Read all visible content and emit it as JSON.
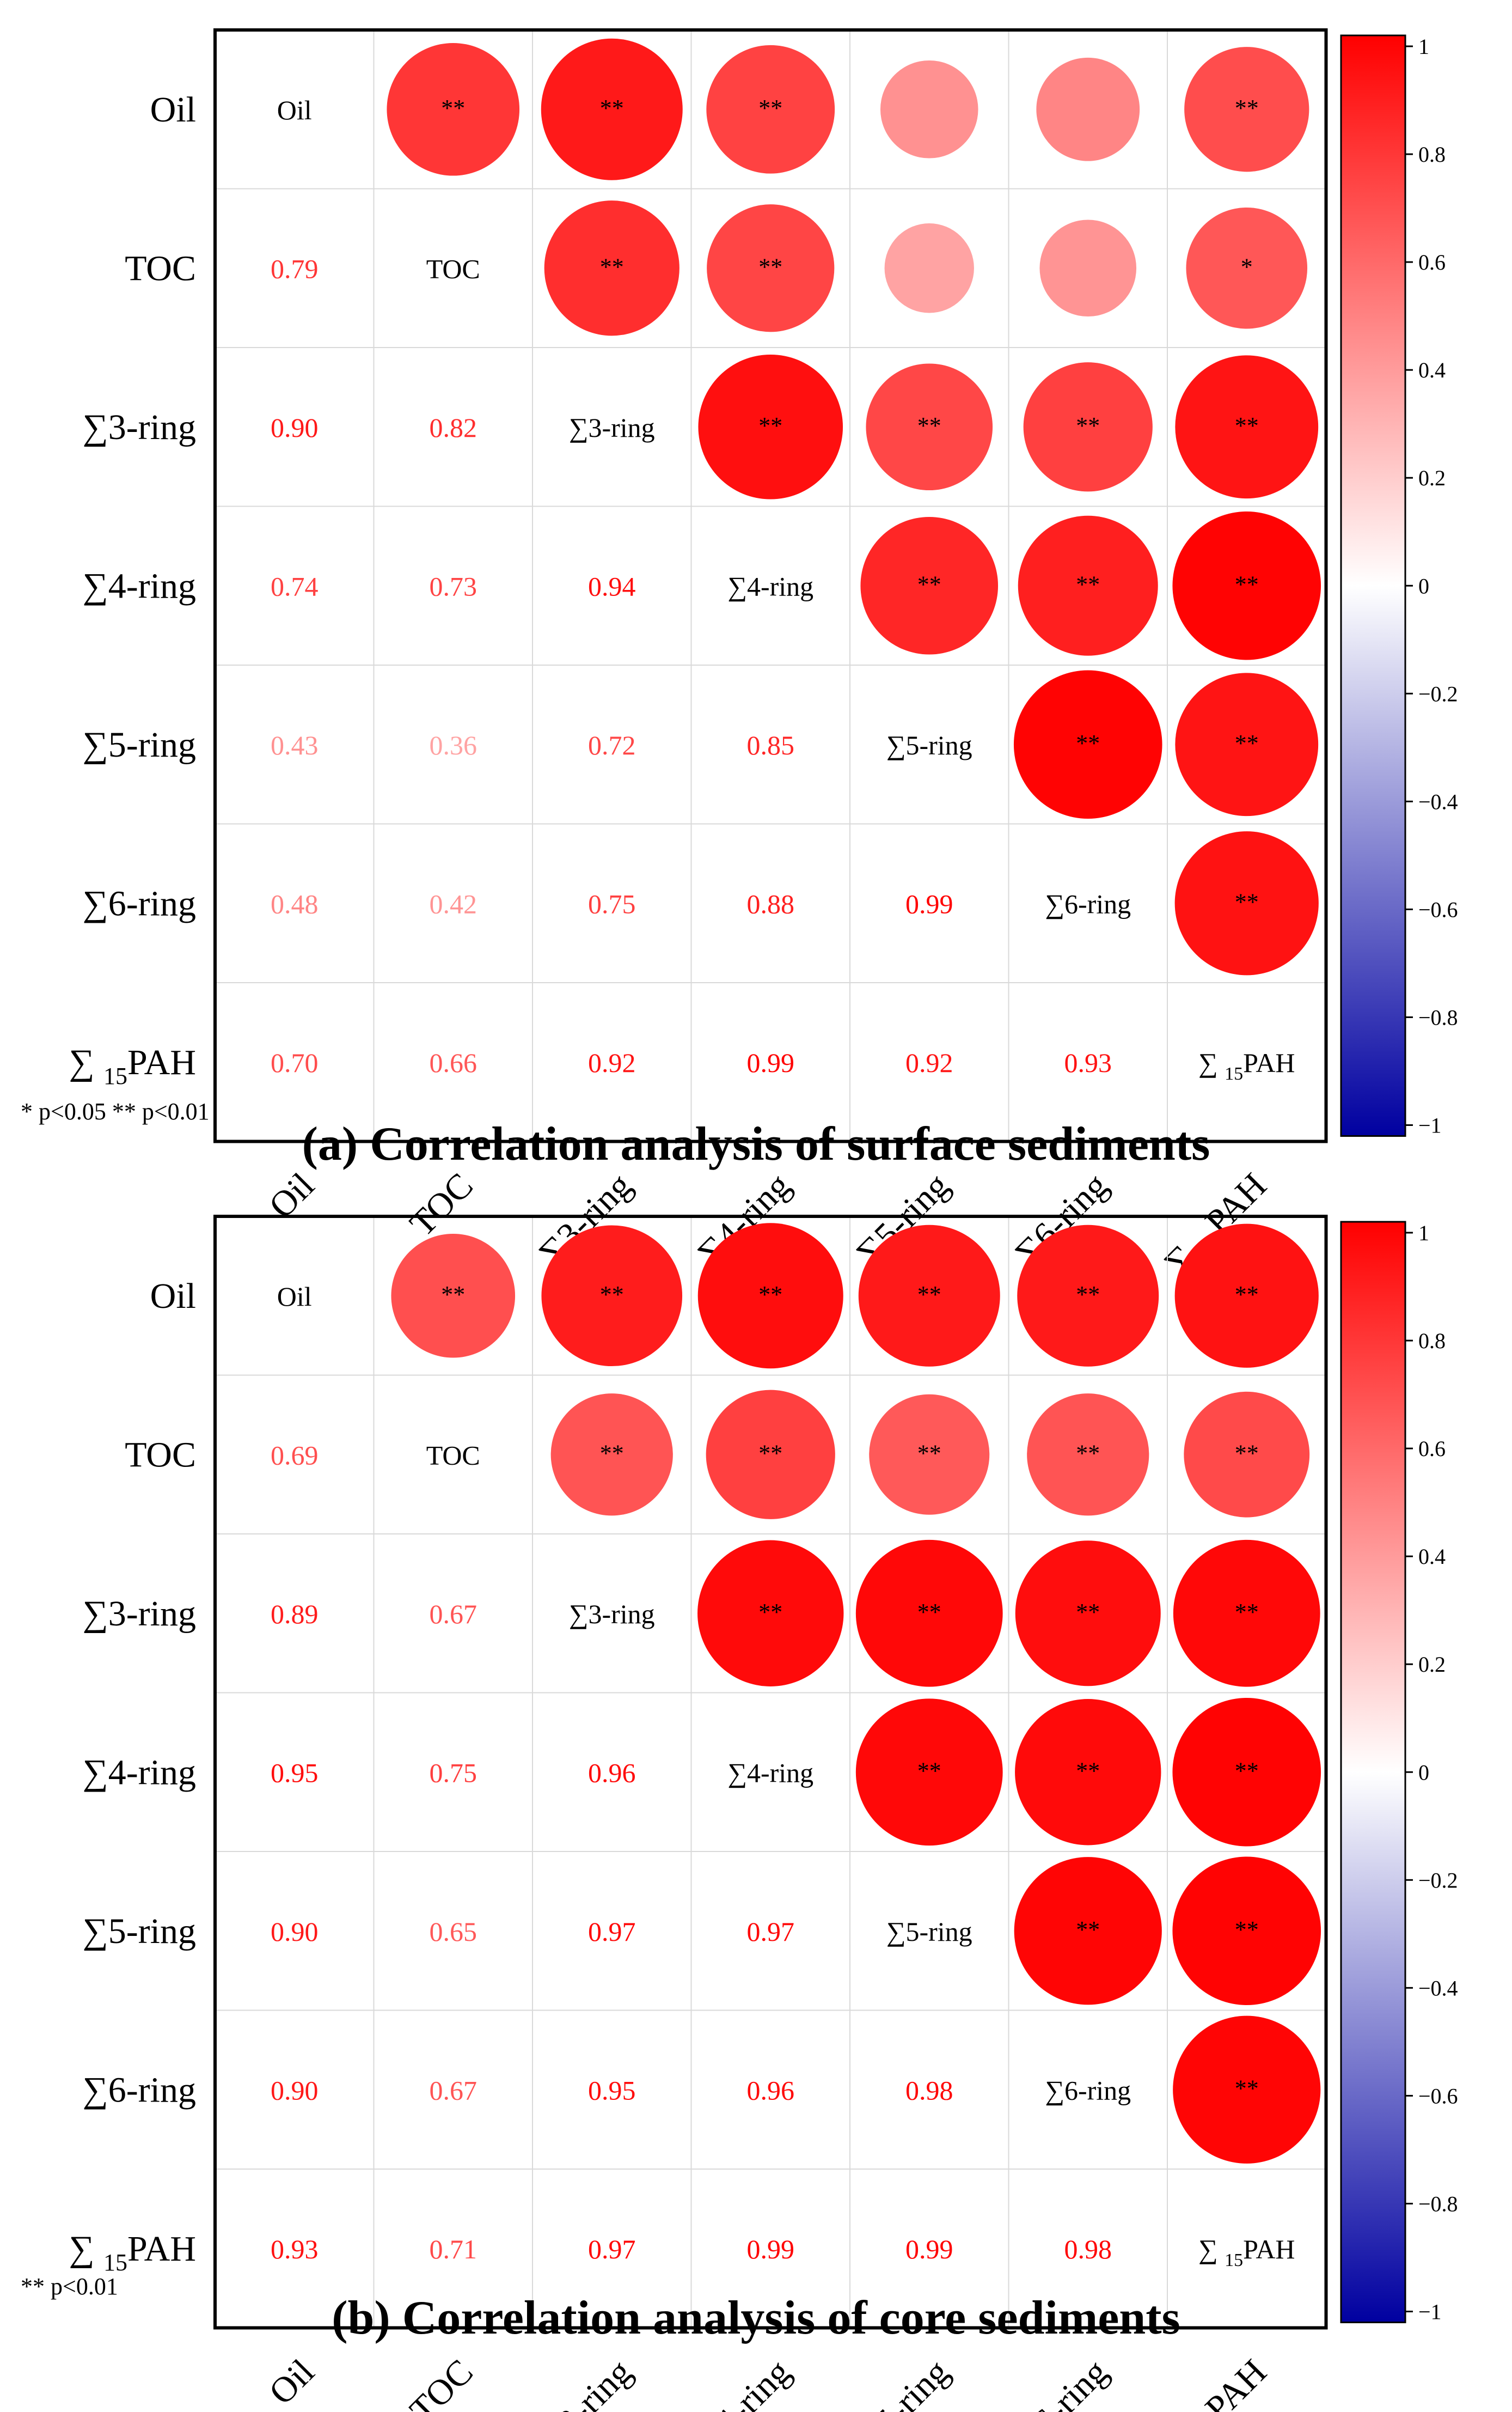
{
  "chart_data": [
    {
      "type": "heatmap",
      "subtype": "correlation-matrix",
      "title": "(a) Correlation analysis of surface sediments",
      "note": "* p<0.05  ** p<0.01",
      "variables": [
        {
          "main": "Oil",
          "sub": ""
        },
        {
          "main": "TOC",
          "sub": ""
        },
        {
          "main": "∑3-ring",
          "sub": ""
        },
        {
          "main": "∑4-ring",
          "sub": ""
        },
        {
          "main": "∑5-ring",
          "sub": ""
        },
        {
          "main": "∑6-ring",
          "sub": ""
        },
        {
          "main": "PAH",
          "sub": "15",
          "prefix": "∑ "
        }
      ],
      "lower_values": [
        [
          0.79
        ],
        [
          0.9,
          0.82
        ],
        [
          0.74,
          0.73,
          0.94
        ],
        [
          0.43,
          0.36,
          0.72,
          0.85
        ],
        [
          0.48,
          0.42,
          0.75,
          0.88,
          0.99
        ],
        [
          0.7,
          0.66,
          0.92,
          0.99,
          0.92,
          0.93
        ]
      ],
      "upper_significance": [
        [
          "**",
          "**",
          "**",
          "",
          "",
          "**"
        ],
        [
          "**",
          "**",
          "",
          "",
          "*"
        ],
        [
          "**",
          "**",
          "**",
          "**"
        ],
        [
          "**",
          "**",
          "**"
        ],
        [
          "**",
          "**"
        ],
        [
          "**"
        ]
      ],
      "colorbar": {
        "range": [
          -1,
          1
        ],
        "ticks": [
          "1",
          "0.8",
          "0.6",
          "0.4",
          "0.2",
          "0",
          "−0.2",
          "−0.4",
          "−0.6",
          "−0.8",
          "−1"
        ]
      }
    },
    {
      "type": "heatmap",
      "subtype": "correlation-matrix",
      "title": "(b) Correlation analysis of core sediments",
      "note": "** p<0.01",
      "variables": [
        {
          "main": "Oil",
          "sub": ""
        },
        {
          "main": "TOC",
          "sub": ""
        },
        {
          "main": "∑3-ring",
          "sub": ""
        },
        {
          "main": "∑4-ring",
          "sub": ""
        },
        {
          "main": "∑5-ring",
          "sub": ""
        },
        {
          "main": "∑6-ring",
          "sub": ""
        },
        {
          "main": "PAH",
          "sub": "15",
          "prefix": "∑ "
        }
      ],
      "lower_values": [
        [
          0.69
        ],
        [
          0.89,
          0.67
        ],
        [
          0.95,
          0.75,
          0.96
        ],
        [
          0.9,
          0.65,
          0.97,
          0.97
        ],
        [
          0.9,
          0.67,
          0.95,
          0.96,
          0.98
        ],
        [
          0.93,
          0.71,
          0.97,
          0.99,
          0.99,
          0.98
        ]
      ],
      "upper_significance": [
        [
          "**",
          "**",
          "**",
          "**",
          "**",
          "**"
        ],
        [
          "**",
          "**",
          "**",
          "**",
          "**"
        ],
        [
          "**",
          "**",
          "**",
          "**"
        ],
        [
          "**",
          "**",
          "**"
        ],
        [
          "**",
          "**"
        ],
        [
          "**"
        ]
      ],
      "colorbar": {
        "range": [
          -1,
          1
        ],
        "ticks": [
          "1",
          "0.8",
          "0.6",
          "0.4",
          "0.2",
          "0",
          "−0.2",
          "−0.4",
          "−0.6",
          "−0.8",
          "−1"
        ]
      }
    }
  ],
  "colors": {
    "high": "#ff0000",
    "mid": "#ffffff",
    "low": "#0000a0",
    "grid": "#d9d9d9",
    "frame": "#000000"
  }
}
